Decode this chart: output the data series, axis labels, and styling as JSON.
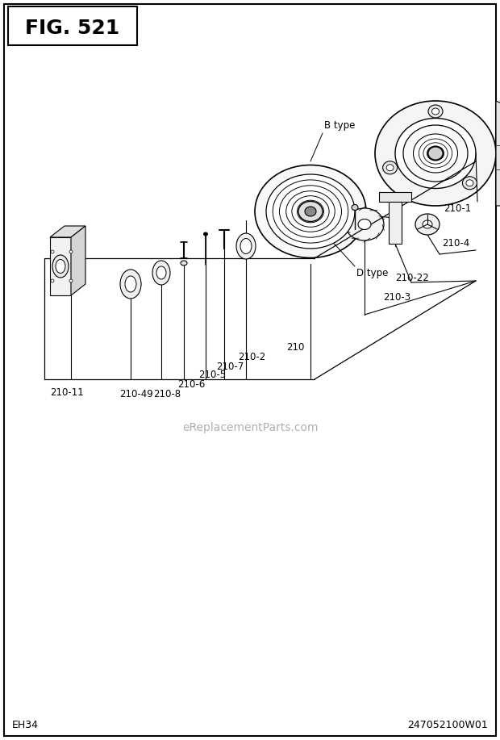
{
  "title": "FIG. 521",
  "bottom_left": "EH34",
  "bottom_right": "247052100W01",
  "bg_color": "#ffffff",
  "watermark": "eReplacementParts.com",
  "fig_width": 6.2,
  "fig_height": 9.17,
  "dpi": 100
}
